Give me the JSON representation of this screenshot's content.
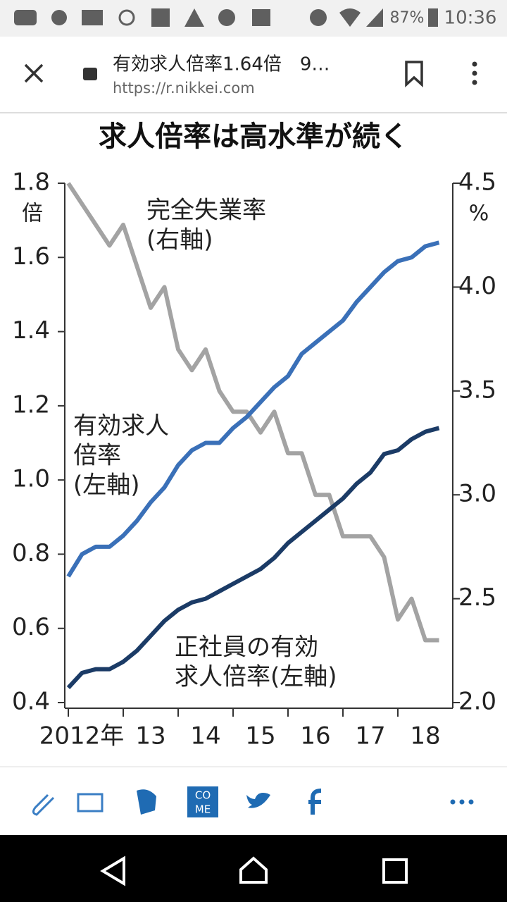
{
  "status_bar": {
    "battery": "87%",
    "time": "10:36"
  },
  "browser": {
    "title": "有効求人倍率1.64倍　9…",
    "url": "https://r.nikkei.com"
  },
  "chart_data": {
    "type": "line",
    "title": "求人倍率は高水準が続く",
    "y_unit": "倍",
    "y2_unit": "%",
    "x": [
      2012,
      2012.25,
      2012.5,
      2012.75,
      2013,
      2013.25,
      2013.5,
      2013.75,
      2014,
      2014.25,
      2014.5,
      2014.75,
      2015,
      2015.25,
      2015.5,
      2015.75,
      2016,
      2016.25,
      2016.5,
      2016.75,
      2017,
      2017.25,
      2017.5,
      2017.75,
      2018,
      2018.25,
      2018.5,
      2018.75
    ],
    "xlim": [
      2012,
      2019
    ],
    "xticks": [
      {
        "value": 2012,
        "label": "2012年"
      },
      {
        "value": 2013,
        "label": "13"
      },
      {
        "value": 2014,
        "label": "14"
      },
      {
        "value": 2015,
        "label": "15"
      },
      {
        "value": 2016,
        "label": "16"
      },
      {
        "value": 2017,
        "label": "17"
      },
      {
        "value": 2018,
        "label": "18"
      }
    ],
    "ylim": [
      0.4,
      1.8
    ],
    "yticks": [
      0.4,
      0.6,
      0.8,
      {
        "value": 1,
        "label": "1.0"
      },
      1.2,
      1.4,
      1.6,
      1.8
    ],
    "y2lim": [
      2,
      4.5
    ],
    "y2ticks": [
      {
        "value": 2,
        "label": "2.0"
      },
      2.5,
      {
        "value": 3,
        "label": "3.0"
      },
      3.5,
      {
        "value": 4,
        "label": "4.0"
      },
      4.5
    ],
    "series": [
      {
        "name": "完全失業率",
        "axis": "y2",
        "color": "#a3a3a3",
        "values": [
          4.5,
          4.4,
          4.3,
          4.2,
          4.3,
          4.1,
          3.9,
          4.0,
          3.7,
          3.6,
          3.7,
          3.5,
          3.4,
          3.4,
          3.3,
          3.4,
          3.2,
          3.2,
          3.0,
          3.0,
          2.8,
          2.8,
          2.8,
          2.7,
          2.4,
          2.5,
          2.3,
          2.3
        ]
      },
      {
        "name": "有効求人倍率",
        "color": "#3a70b8",
        "values": [
          0.74,
          0.8,
          0.82,
          0.82,
          0.85,
          0.89,
          0.94,
          0.98,
          1.04,
          1.08,
          1.1,
          1.1,
          1.14,
          1.17,
          1.21,
          1.25,
          1.28,
          1.34,
          1.37,
          1.4,
          1.43,
          1.48,
          1.52,
          1.56,
          1.59,
          1.6,
          1.63,
          1.64
        ]
      },
      {
        "name": "正社員の有効求人倍率",
        "color": "#1b3b66",
        "values": [
          0.44,
          0.48,
          0.49,
          0.49,
          0.51,
          0.54,
          0.58,
          0.62,
          0.65,
          0.67,
          0.68,
          0.7,
          0.72,
          0.74,
          0.76,
          0.79,
          0.83,
          0.86,
          0.89,
          0.92,
          0.95,
          0.99,
          1.02,
          1.07,
          1.08,
          1.11,
          1.13,
          1.14
        ]
      }
    ],
    "annotations": [
      [
        "完全失業率",
        "(右軸)"
      ],
      [
        "有効求人",
        "倍率",
        "(左軸)"
      ],
      [
        "正社員の有効",
        "求人倍率(左軸)"
      ]
    ]
  },
  "share_bar": {
    "come_logo": [
      "CO",
      "ME"
    ]
  }
}
